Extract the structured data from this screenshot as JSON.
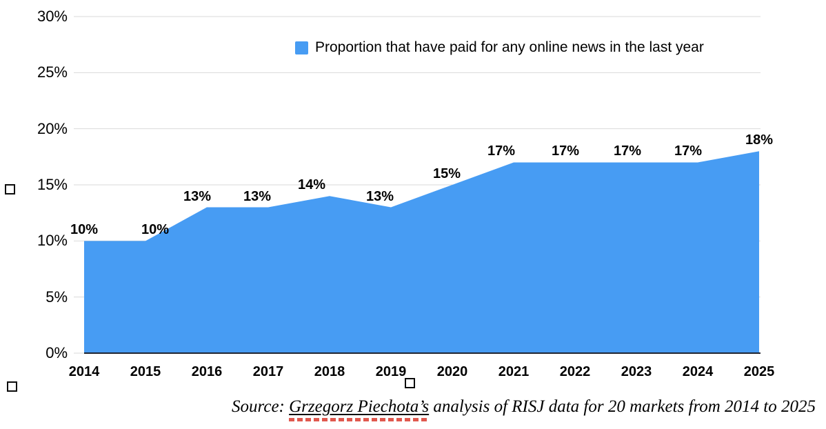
{
  "colors": {
    "accent": "#479CF3",
    "gridline": "#D9D9D9",
    "axis_line": "#1F2430",
    "squiggle": "#E0584E",
    "text": "#000000"
  },
  "chart_data": {
    "type": "area",
    "title": "",
    "legend_label": "Proportion that have paid for any online news in the last year",
    "legend_position": "top",
    "categories": [
      "2014",
      "2015",
      "2016",
      "2017",
      "2018",
      "2019",
      "2020",
      "2021",
      "2022",
      "2023",
      "2024",
      "2025"
    ],
    "series": [
      {
        "name": "Proportion that have paid for any online news in the last year",
        "values": [
          10,
          10,
          13,
          13,
          14,
          13,
          15,
          17,
          17,
          17,
          17,
          18
        ]
      }
    ],
    "data_labels": [
      "10%",
      "10%",
      "13%",
      "13%",
      "14%",
      "13%",
      "15%",
      "17%",
      "17%",
      "17%",
      "17%",
      "18%"
    ],
    "y_ticks": [
      {
        "label": "0%",
        "value": 0
      },
      {
        "label": "5%",
        "value": 5
      },
      {
        "label": "10%",
        "value": 10
      },
      {
        "label": "15%",
        "value": 15
      },
      {
        "label": "20%",
        "value": 20
      },
      {
        "label": "25%",
        "value": 25
      },
      {
        "label": "30%",
        "value": 30
      }
    ],
    "ylim": [
      0,
      30
    ],
    "xlabel": "",
    "ylabel": "",
    "grid": true
  },
  "source": {
    "prefix": "Source: ",
    "link_text": "Grzegorz Piechota’s",
    "suffix": " analysis of RISJ data for 20 markets from 2014 to 2025"
  },
  "artifacts": {
    "missing_glyph_boxes": 3
  }
}
